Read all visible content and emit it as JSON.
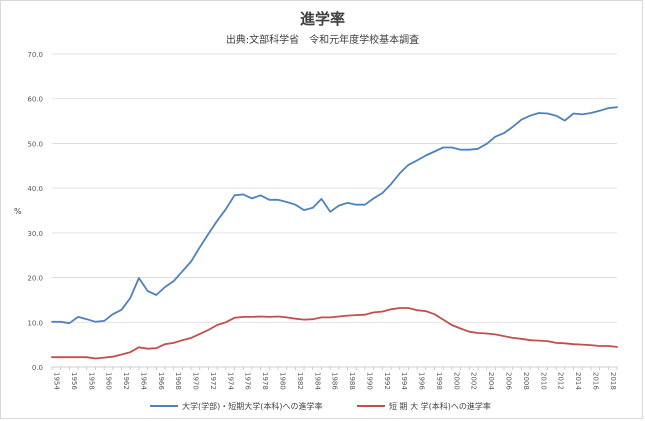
{
  "chart_data": {
    "type": "line",
    "title": "進学率",
    "subtitle": "出典:文部科学省　令和元年度学校基本調査",
    "ylabel": "%",
    "ylim": [
      0,
      70
    ],
    "y_ticks": [
      "0.0",
      "10.0",
      "20.0",
      "30.0",
      "40.0",
      "50.0",
      "60.0",
      "70.0"
    ],
    "x_tick_labels": [
      "1954",
      "1956",
      "1958",
      "1960",
      "1962",
      "1964",
      "1966",
      "1968",
      "1970",
      "1972",
      "1974",
      "1976",
      "1978",
      "1980",
      "1982",
      "1984",
      "1986",
      "1988",
      "1990",
      "1992",
      "1994",
      "1996",
      "1998",
      "2000",
      "2002",
      "2004",
      "2006",
      "2008",
      "2010",
      "2012",
      "2014",
      "2016",
      "2018"
    ],
    "grid": true,
    "legend_position": "bottom",
    "colors": {
      "series1": "#4f81bd",
      "series2": "#c0504d",
      "grid": "#d9d9d9",
      "axis": "#bfbfbf"
    },
    "x": [
      1954,
      1955,
      1956,
      1957,
      1958,
      1959,
      1960,
      1961,
      1962,
      1963,
      1964,
      1965,
      1966,
      1967,
      1968,
      1969,
      1970,
      1971,
      1972,
      1973,
      1974,
      1975,
      1976,
      1977,
      1978,
      1979,
      1980,
      1981,
      1982,
      1983,
      1984,
      1985,
      1986,
      1987,
      1988,
      1989,
      1990,
      1991,
      1992,
      1993,
      1994,
      1995,
      1996,
      1997,
      1998,
      1999,
      2000,
      2001,
      2002,
      2003,
      2004,
      2005,
      2006,
      2007,
      2008,
      2009,
      2010,
      2011,
      2012,
      2013,
      2014,
      2015,
      2016,
      2017,
      2018,
      2019
    ],
    "series": [
      {
        "name": "大学(学部)・短期大学(本科)への進学率",
        "values": [
          10.1,
          10.1,
          9.8,
          11.2,
          10.7,
          10.1,
          10.3,
          11.8,
          12.8,
          15.4,
          19.9,
          17.0,
          16.1,
          17.9,
          19.2,
          21.4,
          23.6,
          26.8,
          29.8,
          32.7,
          35.3,
          38.4,
          38.6,
          37.7,
          38.4,
          37.4,
          37.4,
          36.9,
          36.3,
          35.1,
          35.6,
          37.6,
          34.7,
          36.1,
          36.7,
          36.3,
          36.3,
          37.7,
          38.9,
          40.9,
          43.3,
          45.2,
          46.2,
          47.3,
          48.2,
          49.1,
          49.1,
          48.6,
          48.6,
          48.8,
          49.9,
          51.5,
          52.3,
          53.7,
          55.3,
          56.2,
          56.8,
          56.7,
          56.2,
          55.1,
          56.7,
          56.5,
          56.8,
          57.3,
          57.9,
          58.1
        ]
      },
      {
        "name": "短 期 大 学(本科)への進学率",
        "values": [
          2.2,
          2.2,
          2.2,
          2.2,
          2.2,
          1.9,
          2.1,
          2.3,
          2.8,
          3.3,
          4.4,
          4.1,
          4.2,
          5.1,
          5.4,
          6.0,
          6.5,
          7.4,
          8.3,
          9.4,
          10.0,
          11.0,
          11.2,
          11.2,
          11.3,
          11.2,
          11.3,
          11.1,
          10.8,
          10.6,
          10.7,
          11.1,
          11.1,
          11.3,
          11.5,
          11.6,
          11.7,
          12.2,
          12.4,
          12.9,
          13.2,
          13.2,
          12.7,
          12.5,
          11.8,
          10.6,
          9.4,
          8.6,
          7.9,
          7.6,
          7.5,
          7.3,
          6.9,
          6.5,
          6.3,
          6.0,
          5.9,
          5.8,
          5.4,
          5.3,
          5.1,
          5.0,
          4.9,
          4.7,
          4.7,
          4.5
        ]
      }
    ]
  }
}
